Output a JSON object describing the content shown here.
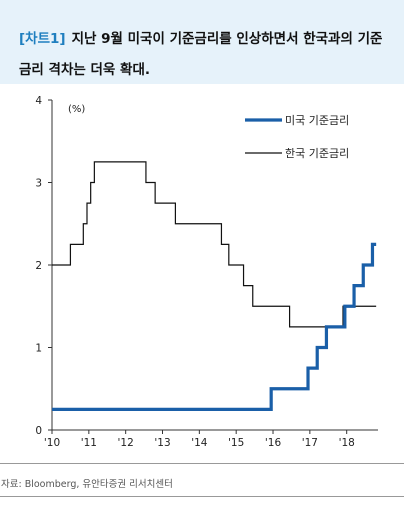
{
  "header": {
    "tag": "[차트1]",
    "title": "지난 9월 미국이 기준금리를 인상하면서 한국과의 기준금리 격차는 더욱 확대."
  },
  "source": "자료: Bloomberg, 유안타증권 리서치센터",
  "colors": {
    "us": "#1a5fa8",
    "kr": "#111111"
  },
  "chart_data": {
    "type": "line",
    "unit_label": "(%)",
    "xlim": [
      2010,
      2018.85
    ],
    "ylim": [
      0,
      4
    ],
    "xticks": [
      2010,
      2011,
      2012,
      2013,
      2014,
      2015,
      2016,
      2017,
      2018
    ],
    "xtick_labels": [
      "'10",
      "'11",
      "'12",
      "'13",
      "'14",
      "'15",
      "'16",
      "'17",
      "'18"
    ],
    "yticks": [
      0,
      1,
      2,
      3,
      4
    ],
    "ytick_labels": [
      "0",
      "1",
      "2",
      "3",
      "4"
    ],
    "legend_position": "top-right",
    "series": [
      {
        "name": "미국 기준금리",
        "style": "step",
        "color": "#1a5fa8",
        "x": [
          2010.0,
          2015.95,
          2016.95,
          2017.2,
          2017.45,
          2017.95,
          2018.2,
          2018.45,
          2018.7,
          2018.8
        ],
        "y": [
          0.25,
          0.5,
          0.75,
          1.0,
          1.25,
          1.5,
          1.75,
          2.0,
          2.25,
          2.25
        ]
      },
      {
        "name": "한국 기준금리",
        "style": "step",
        "color": "#111111",
        "x": [
          2010.0,
          2010.5,
          2010.85,
          2010.95,
          2011.05,
          2011.15,
          2011.45,
          2012.55,
          2012.8,
          2013.35,
          2014.6,
          2014.8,
          2015.2,
          2015.45,
          2016.45,
          2017.9,
          2018.0,
          2018.8
        ],
        "y": [
          2.0,
          2.25,
          2.5,
          2.75,
          3.0,
          3.25,
          3.25,
          3.0,
          2.75,
          2.5,
          2.25,
          2.0,
          1.75,
          1.5,
          1.25,
          1.5,
          1.5,
          1.5
        ]
      }
    ]
  }
}
